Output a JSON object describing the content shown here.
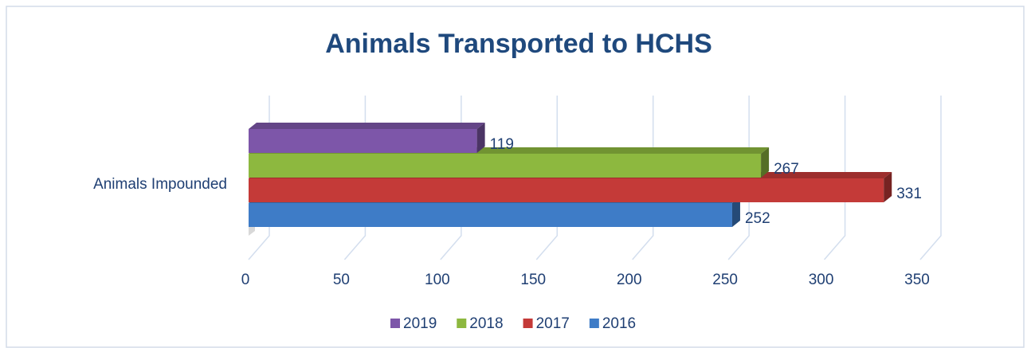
{
  "chart_data": {
    "type": "bar3d_horizontal",
    "title": "Animals Transported to HCHS",
    "categories": [
      "Animals Impounded"
    ],
    "series": [
      {
        "name": "2019",
        "color": "#7d56a9",
        "values": [
          119
        ]
      },
      {
        "name": "2018",
        "color": "#8db83f",
        "values": [
          267
        ]
      },
      {
        "name": "2017",
        "color": "#c43a38",
        "values": [
          331
        ]
      },
      {
        "name": "2016",
        "color": "#3e7cc7",
        "values": [
          252
        ]
      }
    ],
    "xlim": [
      0,
      350
    ],
    "xticks": [
      0,
      50,
      100,
      150,
      200,
      250,
      300,
      350
    ],
    "grid": true,
    "legend": "bottom"
  }
}
